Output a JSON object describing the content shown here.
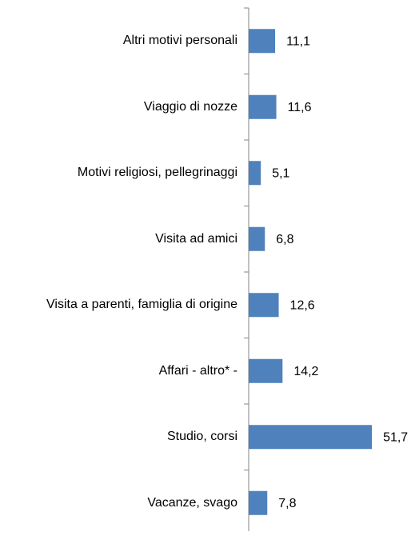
{
  "chart_data": {
    "type": "bar",
    "orientation": "horizontal",
    "categories": [
      "Altri motivi personali",
      "Viaggio di nozze",
      "Motivi religiosi, pellegrinaggi",
      "Visita ad amici",
      "Visita a parenti, famiglia di origine",
      "Affari - altro* -",
      "Studio, corsi",
      "Vacanze, svago"
    ],
    "values": [
      11.1,
      11.6,
      5.1,
      6.8,
      12.6,
      14.2,
      51.7,
      7.8
    ],
    "value_labels": [
      "11,1",
      "11,6",
      "5,1",
      "6,8",
      "12,6",
      "14,2",
      "51,7",
      "7,8"
    ],
    "color": "#4f81bd"
  }
}
